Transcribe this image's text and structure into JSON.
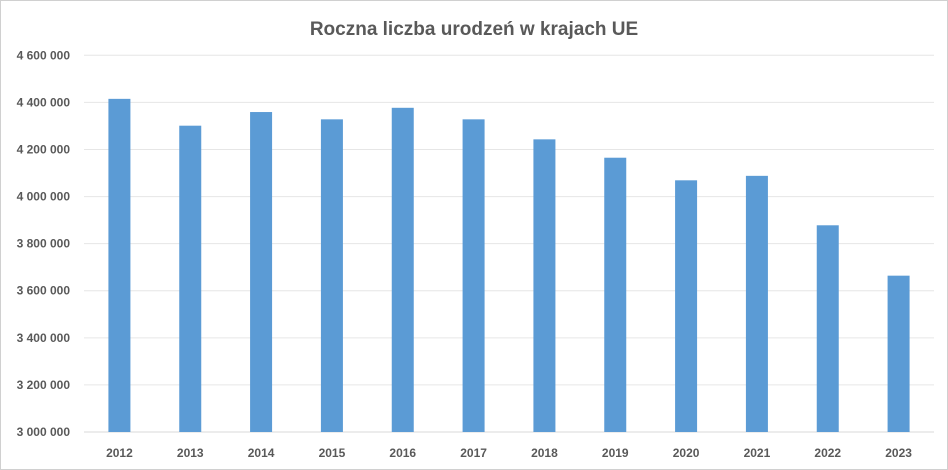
{
  "chart_data": {
    "type": "bar",
    "title": "Roczna liczba urodzeń w krajach UE",
    "xlabel": "",
    "ylabel": "",
    "categories": [
      "2012",
      "2013",
      "2014",
      "2015",
      "2016",
      "2017",
      "2018",
      "2019",
      "2020",
      "2021",
      "2022",
      "2023"
    ],
    "values": [
      4415000,
      4301000,
      4359000,
      4328000,
      4377000,
      4328000,
      4243000,
      4165000,
      4069000,
      4088000,
      3878000,
      3664000
    ],
    "ylim": [
      3000000,
      4600000
    ],
    "yticks": [
      3000000,
      3200000,
      3400000,
      3600000,
      3800000,
      4000000,
      4200000,
      4400000,
      4600000
    ],
    "ytick_labels": [
      "3 000 000",
      "3 200 000",
      "3 400 000",
      "3 600 000",
      "3 800 000",
      "4 000 000",
      "4 200 000",
      "4 400 000",
      "4 600 000"
    ],
    "grid": true,
    "legend": "none",
    "bar_color": "#5B9BD5"
  }
}
